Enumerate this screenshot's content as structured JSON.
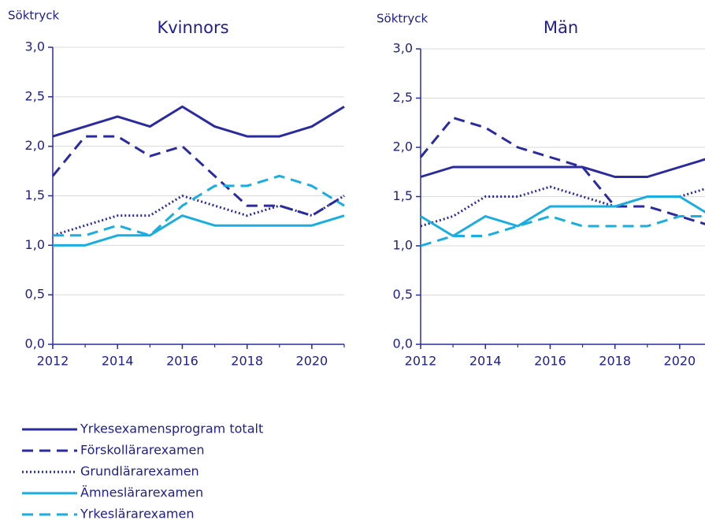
{
  "chart_data": [
    {
      "type": "line",
      "title": "Kvinnors",
      "ylabel": "Söktryck",
      "x": [
        2012,
        2013,
        2014,
        2015,
        2016,
        2017,
        2018,
        2019,
        2020,
        2021
      ],
      "xlim": [
        2012,
        2021
      ],
      "xticks": [
        2012,
        2014,
        2016,
        2018,
        2020
      ],
      "ylim": [
        0,
        3
      ],
      "yticks": [
        {
          "value": 0,
          "label": "0,0"
        },
        {
          "value": 0.5,
          "label": "0,5"
        },
        {
          "value": 1,
          "label": "1,0"
        },
        {
          "value": 1.5,
          "label": "1,5"
        },
        {
          "value": 2,
          "label": "2,0"
        },
        {
          "value": 2.5,
          "label": "2,5"
        },
        {
          "value": 3,
          "label": "3,0"
        }
      ],
      "grid": true,
      "series": [
        {
          "name": "Yrkesexamensprogram totalt",
          "color": "#2b2ba0",
          "linestyle": "solid",
          "values": [
            2.1,
            2.2,
            2.3,
            2.2,
            2.4,
            2.2,
            2.1,
            2.1,
            2.2,
            2.4
          ]
        },
        {
          "name": "Förskollärarexamen",
          "color": "#2b2ba0",
          "linestyle": "dashed",
          "values": [
            1.7,
            2.1,
            2.1,
            1.9,
            2.0,
            1.7,
            1.4,
            1.4,
            1.3,
            1.5
          ]
        },
        {
          "name": "Grundlärarexamen",
          "color": "#2b2ba0",
          "linestyle": "dotted",
          "values": [
            1.1,
            1.2,
            1.3,
            1.3,
            1.5,
            1.4,
            1.3,
            1.4,
            1.3,
            1.5
          ]
        },
        {
          "name": "Ämneslärarexamen",
          "color": "#1aaee0",
          "linestyle": "solid",
          "values": [
            1.0,
            1.0,
            1.1,
            1.1,
            1.3,
            1.2,
            1.2,
            1.2,
            1.2,
            1.3
          ]
        },
        {
          "name": "Yrkeslärarexamen",
          "color": "#1aaee0",
          "linestyle": "dashed",
          "values": [
            1.1,
            1.1,
            1.2,
            1.1,
            1.4,
            1.6,
            1.6,
            1.7,
            1.6,
            1.4
          ]
        }
      ]
    },
    {
      "type": "line",
      "title": "Män",
      "ylabel": "Söktryck",
      "x": [
        2012,
        2013,
        2014,
        2015,
        2016,
        2017,
        2018,
        2019,
        2020,
        2021
      ],
      "xlim": [
        2012,
        2021
      ],
      "xticks": [
        2012,
        2014,
        2016,
        2018,
        2020
      ],
      "ylim": [
        0,
        3
      ],
      "yticks": [
        {
          "value": 0,
          "label": "0,0"
        },
        {
          "value": 0.5,
          "label": "0,5"
        },
        {
          "value": 1,
          "label": "1,0"
        },
        {
          "value": 1.5,
          "label": "1,5"
        },
        {
          "value": 2,
          "label": "2,0"
        },
        {
          "value": 2.5,
          "label": "2,5"
        },
        {
          "value": 3,
          "label": "3,0"
        }
      ],
      "grid": true,
      "series": [
        {
          "color": "#2b2ba0",
          "linestyle": "solid",
          "values": [
            1.7,
            1.8,
            1.8,
            1.8,
            1.8,
            1.8,
            1.7,
            1.7,
            1.8,
            1.9
          ]
        },
        {
          "color": "#2b2ba0",
          "linestyle": "dashed",
          "values": [
            1.9,
            2.3,
            2.2,
            2.0,
            1.9,
            1.8,
            1.4,
            1.4,
            1.3,
            1.2
          ]
        },
        {
          "color": "#2b2ba0",
          "linestyle": "dotted",
          "values": [
            1.2,
            1.3,
            1.5,
            1.5,
            1.6,
            1.5,
            1.4,
            1.5,
            1.5,
            1.6
          ]
        },
        {
          "color": "#1aaee0",
          "linestyle": "solid",
          "values": [
            1.3,
            1.1,
            1.3,
            1.2,
            1.4,
            1.4,
            1.4,
            1.5,
            1.5,
            1.3
          ]
        },
        {
          "color": "#1aaee0",
          "linestyle": "dashed",
          "values": [
            1.0,
            1.1,
            1.1,
            1.2,
            1.3,
            1.2,
            1.2,
            1.2,
            1.3,
            1.3
          ]
        }
      ]
    }
  ]
}
